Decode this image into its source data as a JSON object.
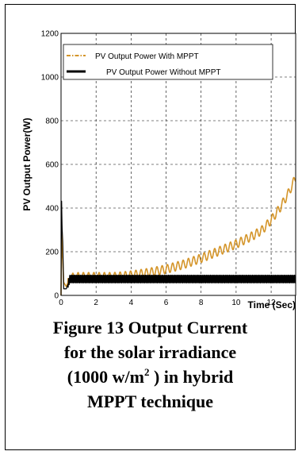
{
  "chart_data": {
    "type": "line",
    "title": "",
    "xlabel": "Time",
    "xlabel_unit": "(Sec)",
    "ylabel": "PV Output Power(W)",
    "xlim": [
      0,
      13.4
    ],
    "ylim": [
      0,
      1200
    ],
    "xticks": [
      "0",
      "2",
      "4",
      "6",
      "8",
      "10",
      "12"
    ],
    "yticks": [
      "0",
      "200",
      "400",
      "600",
      "800",
      "1000",
      "1200"
    ],
    "grid": true,
    "legend_position": "top-left",
    "series": [
      {
        "name": "PV Output  Power  With MPPT",
        "color": "#d4952a",
        "style": "dash-dot",
        "x": [
          0,
          0.03,
          0.06,
          0.1,
          0.15,
          0.3,
          0.5,
          1,
          2,
          3,
          3.5,
          4,
          5,
          6,
          7,
          8,
          9,
          10,
          11,
          11.5,
          12,
          12.5,
          13,
          13.4
        ],
        "y": [
          0,
          320,
          210,
          160,
          60,
          40,
          80,
          85,
          85,
          85,
          88,
          92,
          104,
          120,
          142,
          170,
          202,
          235,
          275,
          300,
          345,
          400,
          470,
          540
        ],
        "oscillation_amplitude": 20,
        "oscillation_period": 0.3
      },
      {
        "name": "PV Output Power   Without MPPT",
        "color": "#000000",
        "style": "solid",
        "x": [
          0,
          0.03,
          0.06,
          0.1,
          0.15,
          0.3,
          0.5,
          1,
          2,
          3,
          13.4
        ],
        "y": [
          0,
          440,
          310,
          240,
          30,
          30,
          75,
          75,
          75,
          75,
          75
        ],
        "oscillation_amplitude": 18,
        "oscillation_period": 0.06
      }
    ]
  },
  "caption": {
    "line1": "Figure 13  Output  Current",
    "line2": "for the solar irradiance",
    "line3_pre": "(1000  w/m",
    "line3_sup": "2",
    "line3_post": " ) in  hybrid",
    "line4": "MPPT technique"
  }
}
